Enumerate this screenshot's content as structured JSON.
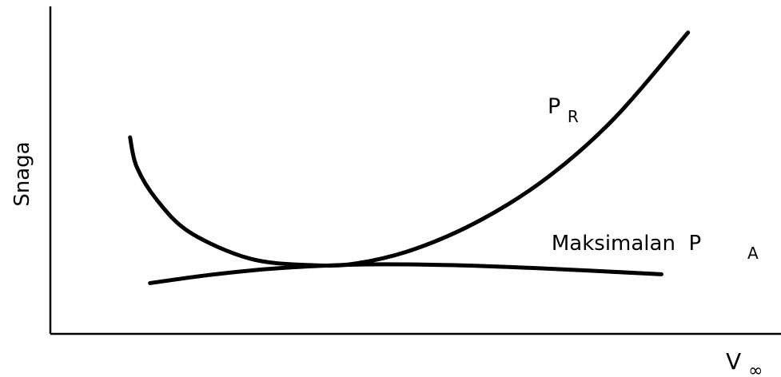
{
  "chart_data": {
    "type": "line",
    "title": "",
    "xlabel": {
      "main": "V",
      "sub": "∞"
    },
    "ylabel": "Snaga",
    "grid": false,
    "legend": "none",
    "series": [
      {
        "name": {
          "main": "P",
          "sub": "R"
        },
        "color": "#000000",
        "points": [
          [
            1.2,
            6.0
          ],
          [
            1.3,
            5.1
          ],
          [
            1.6,
            4.1
          ],
          [
            2.1,
            3.1
          ],
          [
            3.0,
            2.3
          ],
          [
            3.9,
            2.1
          ],
          [
            4.6,
            2.15
          ],
          [
            5.5,
            2.6
          ],
          [
            6.5,
            3.5
          ],
          [
            7.5,
            4.8
          ],
          [
            8.5,
            6.6
          ],
          [
            9.6,
            9.2
          ]
        ]
      },
      {
        "name": {
          "main": "Maksimalan  P",
          "sub": "A"
        },
        "color": "#000000",
        "points": [
          [
            1.5,
            1.55
          ],
          [
            2.4,
            1.8
          ],
          [
            3.4,
            2.0
          ],
          [
            4.7,
            2.12
          ],
          [
            6.0,
            2.1
          ],
          [
            7.4,
            2.0
          ],
          [
            9.2,
            1.82
          ]
        ]
      }
    ]
  }
}
